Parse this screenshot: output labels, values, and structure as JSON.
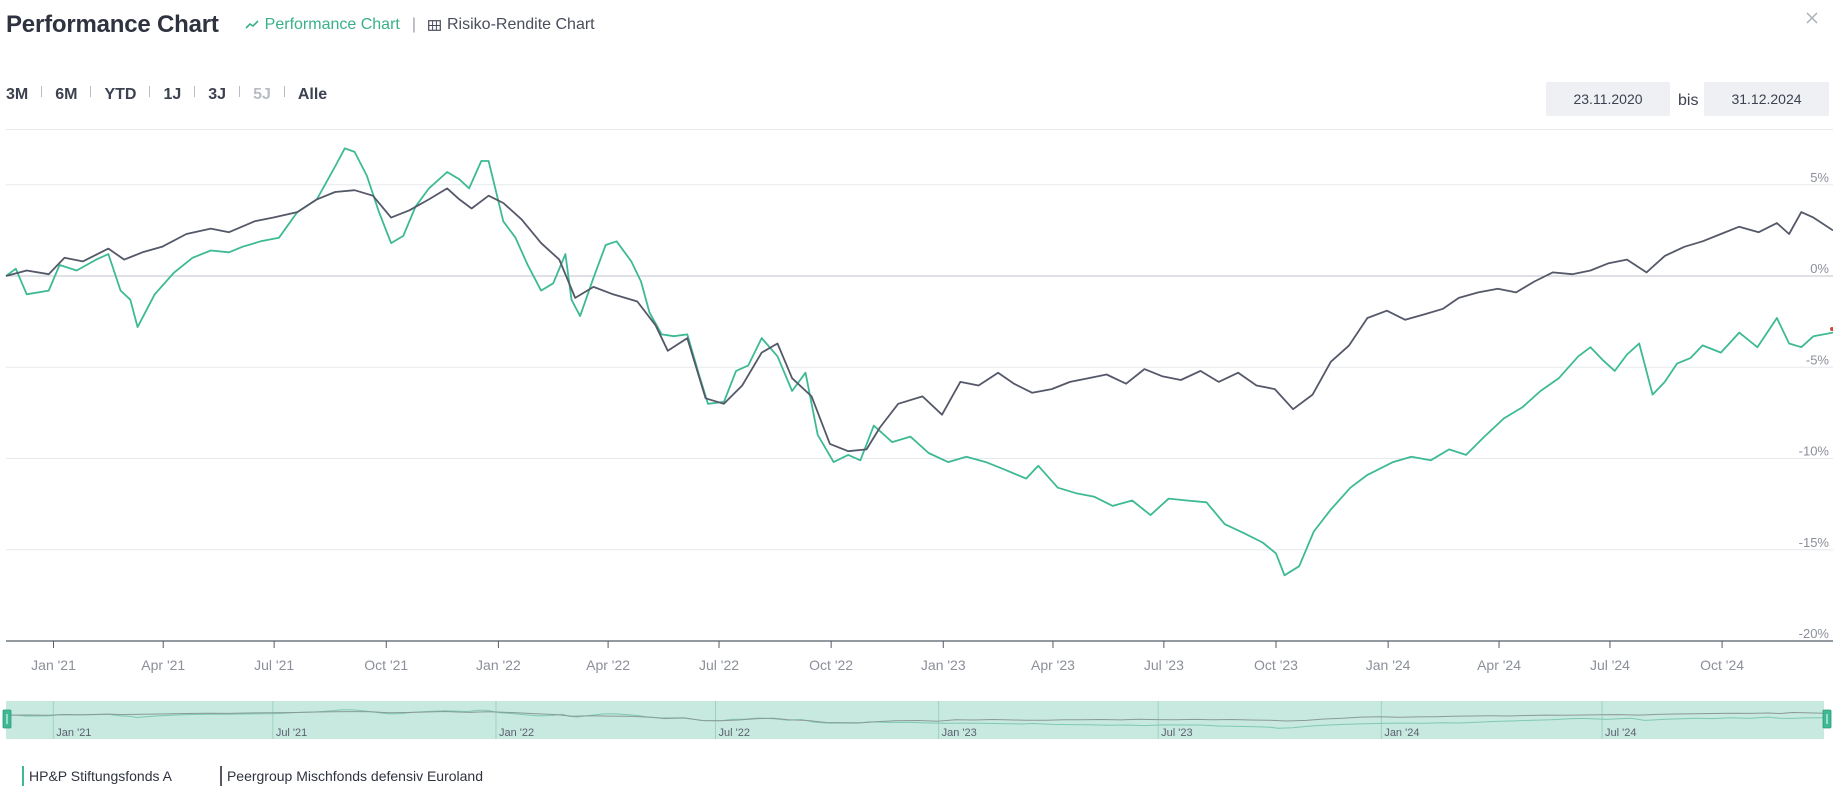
{
  "header": {
    "title": "Performance Chart",
    "tabs": [
      {
        "label": "Performance Chart",
        "icon": "line-chart-icon",
        "active": true
      },
      {
        "label": "Risiko-Rendite Chart",
        "icon": "grid-table-icon",
        "active": false
      }
    ],
    "close_icon": "close-icon"
  },
  "range": {
    "buttons": [
      {
        "label": "3M",
        "disabled": false
      },
      {
        "label": "6M",
        "disabled": false
      },
      {
        "label": "YTD",
        "disabled": false
      },
      {
        "label": "1J",
        "disabled": false
      },
      {
        "label": "3J",
        "disabled": false
      },
      {
        "label": "5J",
        "disabled": true
      },
      {
        "label": "Alle",
        "disabled": false
      }
    ],
    "from": "23.11.2020",
    "separator": "bis",
    "to": "31.12.2024"
  },
  "colors": {
    "fund": "#3dba94",
    "peer": "#545869",
    "navigator_fill": "#c8e9df",
    "grid": "#e6e8ec"
  },
  "chart_data": {
    "type": "line",
    "title": "",
    "xlabel": "",
    "ylabel": "",
    "y_ticks": [
      "5%",
      "0%",
      "-5%",
      "-10%",
      "-15%",
      "-20%"
    ],
    "x_ticks": [
      "Jan '21",
      "Apr '21",
      "Jul '21",
      "Oct '21",
      "Jan '22",
      "Apr '22",
      "Jul '22",
      "Oct '22",
      "Jan '23",
      "Apr '23",
      "Jul '23",
      "Oct '23",
      "Jan '24",
      "Apr '24",
      "Jul '24",
      "Oct '24"
    ],
    "navigator_ticks": [
      "Jan '21",
      "Jul '21",
      "Jan '22",
      "Jul '22",
      "Jan '23",
      "Jul '23",
      "Jan '24",
      "Jul '24"
    ],
    "ylim": [
      -20,
      8
    ],
    "xlim": [
      "2020-11-23",
      "2024-12-31"
    ],
    "grid": true,
    "legend_position": "bottom-left",
    "series": [
      {
        "name": "HP&P Stiftungsfonds A",
        "color": "#3dba94",
        "points": [
          [
            "2020-11-23",
            0.0
          ],
          [
            "2020-12-01",
            0.4
          ],
          [
            "2020-12-10",
            -1.0
          ],
          [
            "2020-12-28",
            -0.8
          ],
          [
            "2021-01-06",
            0.6
          ],
          [
            "2021-01-20",
            0.3
          ],
          [
            "2021-02-05",
            0.9
          ],
          [
            "2021-02-15",
            1.2
          ],
          [
            "2021-02-25",
            -0.8
          ],
          [
            "2021-03-05",
            -1.3
          ],
          [
            "2021-03-11",
            -2.8
          ],
          [
            "2021-03-25",
            -1.0
          ],
          [
            "2021-04-10",
            0.2
          ],
          [
            "2021-04-25",
            1.0
          ],
          [
            "2021-05-10",
            1.4
          ],
          [
            "2021-05-25",
            1.3
          ],
          [
            "2021-06-05",
            1.6
          ],
          [
            "2021-06-20",
            1.9
          ],
          [
            "2021-07-05",
            2.1
          ],
          [
            "2021-07-20",
            3.5
          ],
          [
            "2021-08-05",
            4.2
          ],
          [
            "2021-08-20",
            6.0
          ],
          [
            "2021-08-28",
            7.0
          ],
          [
            "2021-09-05",
            6.8
          ],
          [
            "2021-09-15",
            5.5
          ],
          [
            "2021-09-25",
            3.5
          ],
          [
            "2021-10-05",
            1.8
          ],
          [
            "2021-10-15",
            2.2
          ],
          [
            "2021-10-25",
            3.8
          ],
          [
            "2021-11-05",
            4.8
          ],
          [
            "2021-11-20",
            5.7
          ],
          [
            "2021-11-30",
            5.3
          ],
          [
            "2021-12-08",
            4.8
          ],
          [
            "2021-12-18",
            6.3
          ],
          [
            "2021-12-24",
            6.3
          ],
          [
            "2022-01-05",
            3.0
          ],
          [
            "2022-01-15",
            2.1
          ],
          [
            "2022-01-25",
            0.6
          ],
          [
            "2022-02-05",
            -0.8
          ],
          [
            "2022-02-15",
            -0.4
          ],
          [
            "2022-02-25",
            1.2
          ],
          [
            "2022-03-02",
            -1.3
          ],
          [
            "2022-03-09",
            -2.2
          ],
          [
            "2022-03-20",
            -0.1
          ],
          [
            "2022-03-30",
            1.7
          ],
          [
            "2022-04-08",
            1.9
          ],
          [
            "2022-04-20",
            0.8
          ],
          [
            "2022-04-28",
            -0.3
          ],
          [
            "2022-05-05",
            -2.0
          ],
          [
            "2022-05-15",
            -3.2
          ],
          [
            "2022-05-25",
            -3.3
          ],
          [
            "2022-06-05",
            -3.2
          ],
          [
            "2022-06-15",
            -5.5
          ],
          [
            "2022-06-22",
            -7.0
          ],
          [
            "2022-07-05",
            -6.9
          ],
          [
            "2022-07-15",
            -5.2
          ],
          [
            "2022-07-25",
            -4.9
          ],
          [
            "2022-08-05",
            -3.4
          ],
          [
            "2022-08-18",
            -4.4
          ],
          [
            "2022-08-30",
            -6.3
          ],
          [
            "2022-09-10",
            -5.3
          ],
          [
            "2022-09-20",
            -8.7
          ],
          [
            "2022-10-03",
            -10.2
          ],
          [
            "2022-10-15",
            -9.8
          ],
          [
            "2022-10-25",
            -10.1
          ],
          [
            "2022-11-05",
            -8.2
          ],
          [
            "2022-11-20",
            -9.1
          ],
          [
            "2022-12-05",
            -8.8
          ],
          [
            "2022-12-20",
            -9.7
          ],
          [
            "2023-01-05",
            -10.2
          ],
          [
            "2023-01-20",
            -9.9
          ],
          [
            "2023-02-05",
            -10.2
          ],
          [
            "2023-02-20",
            -10.6
          ],
          [
            "2023-03-10",
            -11.1
          ],
          [
            "2023-03-20",
            -10.4
          ],
          [
            "2023-04-05",
            -11.6
          ],
          [
            "2023-04-20",
            -11.9
          ],
          [
            "2023-05-05",
            -12.1
          ],
          [
            "2023-05-20",
            -12.6
          ],
          [
            "2023-06-05",
            -12.3
          ],
          [
            "2023-06-20",
            -13.1
          ],
          [
            "2023-07-05",
            -12.2
          ],
          [
            "2023-07-20",
            -12.3
          ],
          [
            "2023-08-05",
            -12.4
          ],
          [
            "2023-08-20",
            -13.6
          ],
          [
            "2023-09-05",
            -14.1
          ],
          [
            "2023-09-20",
            -14.6
          ],
          [
            "2023-10-01",
            -15.2
          ],
          [
            "2023-10-08",
            -16.4
          ],
          [
            "2023-10-20",
            -15.9
          ],
          [
            "2023-11-01",
            -14.0
          ],
          [
            "2023-11-15",
            -12.8
          ],
          [
            "2023-12-01",
            -11.6
          ],
          [
            "2023-12-15",
            -10.9
          ],
          [
            "2024-01-05",
            -10.2
          ],
          [
            "2024-01-20",
            -9.9
          ],
          [
            "2024-02-05",
            -10.1
          ],
          [
            "2024-02-20",
            -9.5
          ],
          [
            "2024-03-05",
            -9.8
          ],
          [
            "2024-03-20",
            -8.8
          ],
          [
            "2024-04-05",
            -7.8
          ],
          [
            "2024-04-20",
            -7.2
          ],
          [
            "2024-05-05",
            -6.3
          ],
          [
            "2024-05-20",
            -5.6
          ],
          [
            "2024-06-05",
            -4.4
          ],
          [
            "2024-06-15",
            -3.9
          ],
          [
            "2024-06-25",
            -4.6
          ],
          [
            "2024-07-05",
            -5.2
          ],
          [
            "2024-07-15",
            -4.3
          ],
          [
            "2024-07-25",
            -3.7
          ],
          [
            "2024-08-05",
            -6.5
          ],
          [
            "2024-08-15",
            -5.8
          ],
          [
            "2024-08-25",
            -4.8
          ],
          [
            "2024-09-05",
            -4.5
          ],
          [
            "2024-09-15",
            -3.8
          ],
          [
            "2024-09-30",
            -4.2
          ],
          [
            "2024-10-15",
            -3.1
          ],
          [
            "2024-10-30",
            -3.9
          ],
          [
            "2024-11-15",
            -2.3
          ],
          [
            "2024-11-25",
            -3.7
          ],
          [
            "2024-12-05",
            -3.9
          ],
          [
            "2024-12-15",
            -3.3
          ],
          [
            "2024-12-31",
            -3.1
          ]
        ]
      },
      {
        "name": "Peergroup Mischfonds defensiv Euroland",
        "color": "#545869",
        "points": [
          [
            "2020-11-23",
            0.0
          ],
          [
            "2020-12-10",
            0.3
          ],
          [
            "2020-12-28",
            0.1
          ],
          [
            "2021-01-10",
            1.0
          ],
          [
            "2021-01-25",
            0.8
          ],
          [
            "2021-02-15",
            1.5
          ],
          [
            "2021-02-28",
            0.9
          ],
          [
            "2021-03-15",
            1.3
          ],
          [
            "2021-03-31",
            1.6
          ],
          [
            "2021-04-20",
            2.3
          ],
          [
            "2021-05-10",
            2.6
          ],
          [
            "2021-05-25",
            2.4
          ],
          [
            "2021-06-15",
            3.0
          ],
          [
            "2021-06-30",
            3.2
          ],
          [
            "2021-07-20",
            3.5
          ],
          [
            "2021-08-05",
            4.2
          ],
          [
            "2021-08-20",
            4.6
          ],
          [
            "2021-09-05",
            4.7
          ],
          [
            "2021-09-20",
            4.4
          ],
          [
            "2021-10-05",
            3.2
          ],
          [
            "2021-10-20",
            3.6
          ],
          [
            "2021-11-05",
            4.2
          ],
          [
            "2021-11-20",
            4.8
          ],
          [
            "2021-11-30",
            4.2
          ],
          [
            "2021-12-10",
            3.7
          ],
          [
            "2021-12-24",
            4.4
          ],
          [
            "2022-01-05",
            4.0
          ],
          [
            "2022-01-20",
            3.1
          ],
          [
            "2022-02-05",
            1.8
          ],
          [
            "2022-02-20",
            0.9
          ],
          [
            "2022-03-05",
            -1.2
          ],
          [
            "2022-03-20",
            -0.6
          ],
          [
            "2022-04-05",
            -1.0
          ],
          [
            "2022-04-25",
            -1.4
          ],
          [
            "2022-05-10",
            -2.7
          ],
          [
            "2022-05-20",
            -4.1
          ],
          [
            "2022-06-05",
            -3.4
          ],
          [
            "2022-06-20",
            -6.7
          ],
          [
            "2022-07-05",
            -7.0
          ],
          [
            "2022-07-20",
            -6.0
          ],
          [
            "2022-08-05",
            -4.2
          ],
          [
            "2022-08-18",
            -3.7
          ],
          [
            "2022-08-30",
            -5.6
          ],
          [
            "2022-09-15",
            -6.6
          ],
          [
            "2022-09-30",
            -9.2
          ],
          [
            "2022-10-15",
            -9.6
          ],
          [
            "2022-10-30",
            -9.5
          ],
          [
            "2022-11-10",
            -8.3
          ],
          [
            "2022-11-25",
            -7.0
          ],
          [
            "2022-12-15",
            -6.6
          ],
          [
            "2022-12-31",
            -7.6
          ],
          [
            "2023-01-15",
            -5.8
          ],
          [
            "2023-01-30",
            -6.0
          ],
          [
            "2023-02-15",
            -5.3
          ],
          [
            "2023-02-28",
            -5.9
          ],
          [
            "2023-03-15",
            -6.4
          ],
          [
            "2023-03-31",
            -6.2
          ],
          [
            "2023-04-15",
            -5.8
          ],
          [
            "2023-04-30",
            -5.6
          ],
          [
            "2023-05-15",
            -5.4
          ],
          [
            "2023-05-31",
            -5.9
          ],
          [
            "2023-06-15",
            -5.1
          ],
          [
            "2023-06-30",
            -5.5
          ],
          [
            "2023-07-15",
            -5.7
          ],
          [
            "2023-07-31",
            -5.2
          ],
          [
            "2023-08-15",
            -5.8
          ],
          [
            "2023-08-31",
            -5.3
          ],
          [
            "2023-09-15",
            -6.0
          ],
          [
            "2023-09-30",
            -6.2
          ],
          [
            "2023-10-15",
            -7.3
          ],
          [
            "2023-10-31",
            -6.5
          ],
          [
            "2023-11-15",
            -4.7
          ],
          [
            "2023-11-30",
            -3.8
          ],
          [
            "2023-12-15",
            -2.3
          ],
          [
            "2023-12-31",
            -1.9
          ],
          [
            "2024-01-15",
            -2.4
          ],
          [
            "2024-01-31",
            -2.1
          ],
          [
            "2024-02-15",
            -1.8
          ],
          [
            "2024-02-28",
            -1.2
          ],
          [
            "2024-03-15",
            -0.9
          ],
          [
            "2024-03-31",
            -0.7
          ],
          [
            "2024-04-15",
            -0.9
          ],
          [
            "2024-04-30",
            -0.3
          ],
          [
            "2024-05-15",
            0.2
          ],
          [
            "2024-05-31",
            0.1
          ],
          [
            "2024-06-15",
            0.3
          ],
          [
            "2024-06-30",
            0.7
          ],
          [
            "2024-07-15",
            0.9
          ],
          [
            "2024-07-31",
            0.2
          ],
          [
            "2024-08-15",
            1.1
          ],
          [
            "2024-08-31",
            1.6
          ],
          [
            "2024-09-15",
            1.9
          ],
          [
            "2024-09-30",
            2.3
          ],
          [
            "2024-10-15",
            2.7
          ],
          [
            "2024-10-31",
            2.4
          ],
          [
            "2024-11-15",
            2.9
          ],
          [
            "2024-11-25",
            2.3
          ],
          [
            "2024-12-05",
            3.5
          ],
          [
            "2024-12-15",
            3.2
          ],
          [
            "2024-12-31",
            2.5
          ]
        ]
      }
    ]
  },
  "legend": [
    {
      "label": "HP&P Stiftungsfonds A",
      "color": "#3dba94"
    },
    {
      "label": "Peergroup Mischfonds defensiv Euroland",
      "color": "#545869"
    }
  ]
}
